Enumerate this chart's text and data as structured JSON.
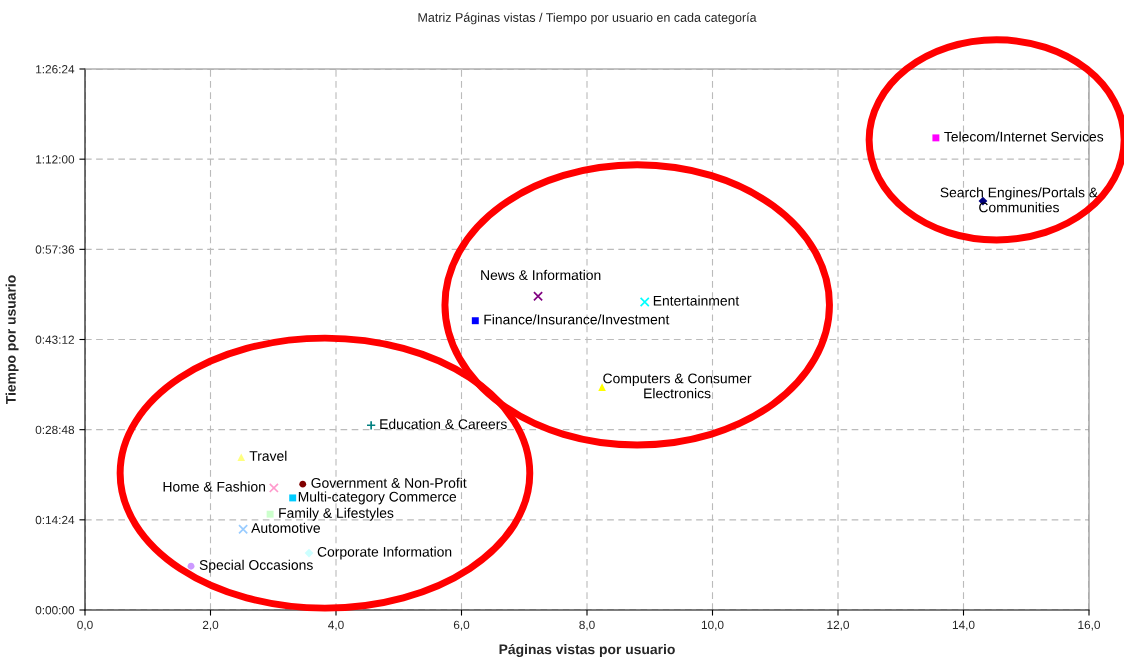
{
  "chart_data": {
    "type": "scatter",
    "title": "Matriz Páginas vistas / Tiempo por usuario en cada categoría",
    "xlabel": "Páginas vistas por usuario",
    "ylabel": "Tiempo por usuario",
    "xlim": [
      0,
      16
    ],
    "xticks": [
      {
        "value": 0,
        "label": "0,0"
      },
      {
        "value": 2,
        "label": "2,0"
      },
      {
        "value": 4,
        "label": "4,0"
      },
      {
        "value": 6,
        "label": "6,0"
      },
      {
        "value": 8,
        "label": "8,0"
      },
      {
        "value": 10,
        "label": "10,0"
      },
      {
        "value": 12,
        "label": "12,0"
      },
      {
        "value": 14,
        "label": "14,0"
      },
      {
        "value": 16,
        "label": "16,0"
      }
    ],
    "ylim": [
      0,
      86.4
    ],
    "yticks": [
      {
        "value": 0,
        "label": "0:00:00"
      },
      {
        "value": 14.4,
        "label": "0:14:24"
      },
      {
        "value": 28.8,
        "label": "0:28:48"
      },
      {
        "value": 43.2,
        "label": "0:43:12"
      },
      {
        "value": 57.6,
        "label": "0:57:36"
      },
      {
        "value": 72,
        "label": "1:12:00"
      },
      {
        "value": 86.4,
        "label": "1:26:24"
      }
    ],
    "grid": true,
    "legend": false,
    "series": [
      {
        "name": "Telecom/Internet Services",
        "color": "#ff00ff",
        "marker": "square",
        "x": [
          13.56
        ],
        "values": [
          75.4
        ]
      },
      {
        "name": "Search Engines/Portals & Communities",
        "color": "#000080",
        "marker": "diamond",
        "x": [
          14.31
        ],
        "values": [
          65.3
        ]
      },
      {
        "name": "News & Information",
        "color": "#800080",
        "marker": "cross",
        "x": [
          7.22
        ],
        "values": [
          50.1
        ]
      },
      {
        "name": "Entertainment",
        "color": "#00ffff",
        "marker": "cross",
        "x": [
          8.92
        ],
        "values": [
          49.2
        ]
      },
      {
        "name": "Finance/Insurance/Investment",
        "color": "#0000ff",
        "marker": "square",
        "x": [
          6.22
        ],
        "values": [
          46.2
        ]
      },
      {
        "name": "Computers & Consumer Electronics",
        "color": "#ffff00",
        "marker": "triangle",
        "x": [
          8.24
        ],
        "values": [
          35.6
        ]
      },
      {
        "name": "Education & Careers",
        "color": "#008080",
        "marker": "plus",
        "x": [
          4.56
        ],
        "values": [
          29.5
        ]
      },
      {
        "name": "Travel",
        "color": "#ffff80",
        "marker": "triangle",
        "x": [
          2.49
        ],
        "values": [
          24.4
        ]
      },
      {
        "name": "Home & Fashion",
        "color": "#ff99cc",
        "marker": "cross",
        "x": [
          3.01
        ],
        "values": [
          19.5
        ]
      },
      {
        "name": "Government & Non-Profit",
        "color": "#800000",
        "marker": "circle",
        "x": [
          3.47
        ],
        "values": [
          20.1
        ]
      },
      {
        "name": "Multi-category Commerce",
        "color": "#00ccff",
        "marker": "square",
        "x": [
          3.31
        ],
        "values": [
          17.9
        ]
      },
      {
        "name": "Family & Lifestyles",
        "color": "#ccffcc",
        "marker": "square",
        "x": [
          2.95
        ],
        "values": [
          15.3
        ]
      },
      {
        "name": "Automotive",
        "color": "#99ccff",
        "marker": "cross",
        "x": [
          2.52
        ],
        "values": [
          12.9
        ]
      },
      {
        "name": "Corporate Information",
        "color": "#ccffff",
        "marker": "diamond",
        "x": [
          3.57
        ],
        "values": [
          9.1
        ]
      },
      {
        "name": "Special Occasions",
        "color": "#cc99ff",
        "marker": "circle",
        "x": [
          1.69
        ],
        "values": [
          7.0
        ]
      }
    ]
  }
}
